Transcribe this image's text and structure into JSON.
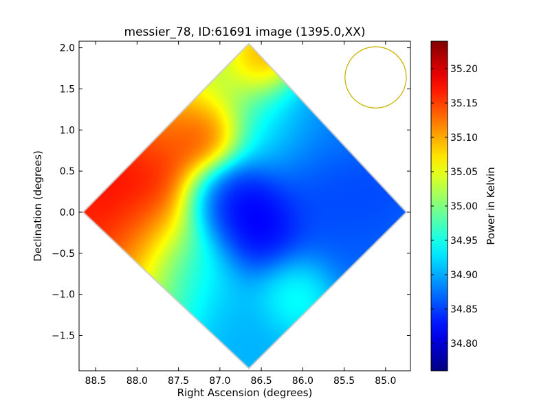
{
  "chart_data": {
    "type": "heatmap",
    "title": "messier_78, ID:61691 image (1395.0,XX)",
    "xlabel": "Right Ascension (degrees)",
    "ylabel": "Declination (degrees)",
    "xlim": [
      88.7,
      84.7
    ],
    "ylim": [
      -1.93,
      2.08
    ],
    "x_ticks": [
      88.5,
      88.0,
      87.5,
      87.0,
      86.5,
      86.0,
      85.5,
      85.0
    ],
    "x_tick_labels": [
      "88.5",
      "88.0",
      "87.5",
      "87.0",
      "86.5",
      "86.0",
      "85.5",
      "85.0"
    ],
    "y_ticks": [
      2.0,
      1.5,
      1.0,
      0.5,
      0.0,
      -0.5,
      -1.0,
      -1.5
    ],
    "y_tick_labels": [
      "2.0",
      "1.5",
      "1.0",
      "0.5",
      "0.0",
      "−0.5",
      "−1.0",
      "−1.5"
    ],
    "colormap": "jet",
    "colorbar": {
      "label": "Power in Kelvin",
      "min": 34.76,
      "max": 35.24,
      "ticks": [
        35.2,
        35.15,
        35.1,
        35.05,
        35.0,
        34.95,
        34.9,
        34.85,
        34.8
      ],
      "tick_labels": [
        "35.20",
        "35.15",
        "35.10",
        "35.05",
        "35.00",
        "34.95",
        "34.90",
        "34.85",
        "34.80"
      ]
    },
    "footprint": {
      "shape": "diamond",
      "vertices": [
        [
          86.65,
          2.05
        ],
        [
          84.75,
          0.0
        ],
        [
          86.65,
          -1.9
        ],
        [
          88.65,
          0.0
        ]
      ]
    },
    "beam_circle": {
      "center": [
        85.12,
        1.64
      ],
      "radius_deg": 0.37,
      "color": "#c8b400"
    },
    "blobs": [
      {
        "x": 88.0,
        "y": 0.6,
        "value": 35.22,
        "spread": 0.6
      },
      {
        "x": 88.45,
        "y": -0.25,
        "value": 35.2,
        "spread": 0.45
      },
      {
        "x": 87.2,
        "y": 0.95,
        "value": 35.18,
        "spread": 0.25
      },
      {
        "x": 86.5,
        "y": 1.85,
        "value": 35.15,
        "spread": 0.25
      },
      {
        "x": 87.8,
        "y": 1.2,
        "value": 35.1,
        "spread": 0.45
      },
      {
        "x": 87.8,
        "y": -0.6,
        "value": 35.08,
        "spread": 0.5
      },
      {
        "x": 87.0,
        "y": 1.6,
        "value": 35.03,
        "spread": 0.45
      },
      {
        "x": 86.7,
        "y": 0.0,
        "value": 34.79,
        "spread": 0.35
      },
      {
        "x": 86.9,
        "y": 0.15,
        "value": 34.8,
        "spread": 0.3
      },
      {
        "x": 86.5,
        "y": -0.3,
        "value": 34.8,
        "spread": 0.3
      },
      {
        "x": 85.5,
        "y": 0.55,
        "value": 34.83,
        "spread": 0.55
      },
      {
        "x": 85.6,
        "y": -0.2,
        "value": 34.86,
        "spread": 0.6
      },
      {
        "x": 86.1,
        "y": -0.95,
        "value": 34.98,
        "spread": 0.28
      },
      {
        "x": 86.8,
        "y": -1.3,
        "value": 34.9,
        "spread": 0.45
      },
      {
        "x": 87.3,
        "y": -0.7,
        "value": 34.9,
        "spread": 0.35
      },
      {
        "x": 86.3,
        "y": 1.0,
        "value": 34.93,
        "spread": 0.4
      },
      {
        "x": 85.5,
        "y": 1.0,
        "value": 34.9,
        "spread": 0.4
      }
    ],
    "background_value": 34.92
  }
}
